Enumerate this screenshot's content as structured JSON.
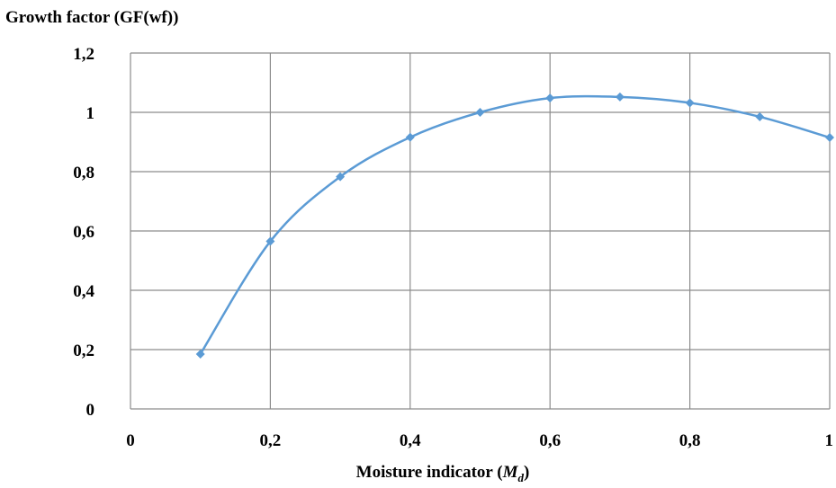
{
  "chart_data": {
    "type": "line",
    "title": "",
    "ylabel": "Growth factor (GF(wf))",
    "xlabel_main": "Moisture indicator (",
    "xlabel_var": "M",
    "xlabel_sub": "d",
    "xlabel_close": ")",
    "xlim": [
      0,
      1
    ],
    "ylim": [
      0,
      1.2
    ],
    "x_ticks": [
      0,
      0.2,
      0.4,
      0.6,
      0.8,
      1
    ],
    "x_tick_labels": [
      "0",
      "0,2",
      "0,4",
      "0,6",
      "0,8",
      "1"
    ],
    "y_ticks": [
      0,
      0.2,
      0.4,
      0.6,
      0.8,
      1,
      1.2
    ],
    "y_tick_labels": [
      "0",
      "0,2",
      "0,4",
      "0,6",
      "0,8",
      "1",
      "1,2"
    ],
    "grid": true,
    "smooth": true,
    "series": [
      {
        "x": [
          0.1,
          0.2,
          0.3,
          0.4,
          0.5,
          0.6,
          0.7,
          0.8,
          0.9,
          1.0
        ],
        "y": [
          0.185,
          0.565,
          0.783,
          0.916,
          1.0,
          1.048,
          1.052,
          1.032,
          0.985,
          0.915
        ],
        "color": "#5b9bd5",
        "marker": "diamond"
      }
    ]
  }
}
